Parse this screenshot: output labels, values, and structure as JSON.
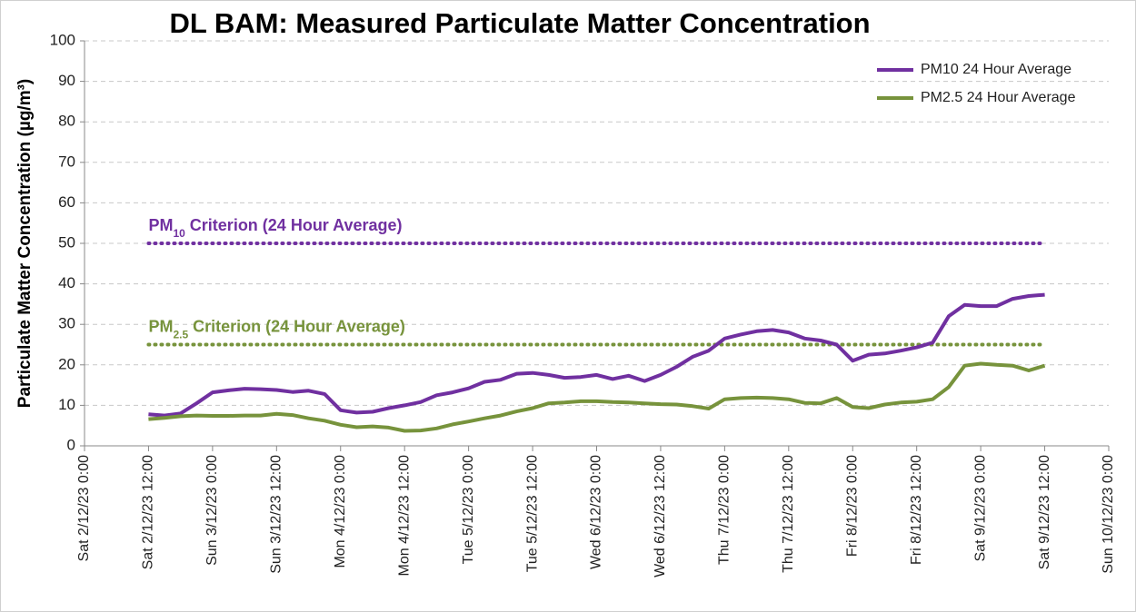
{
  "chart_data": {
    "type": "line",
    "title": "DL BAM: Measured Particulate Matter Concentration",
    "y_label": "Particulate Matter Concentration (µg/m³)",
    "ylim": [
      0,
      100
    ],
    "yticks": [
      0,
      10,
      20,
      30,
      40,
      50,
      60,
      70,
      80,
      90,
      100
    ],
    "xlim": [
      "2023-12-02T00:00",
      "2023-12-10T00:00"
    ],
    "xticks": [
      {
        "value": "2023-12-02T00:00",
        "label": "Sat 2/12/23 0:00"
      },
      {
        "value": "2023-12-02T12:00",
        "label": "Sat 2/12/23 12:00"
      },
      {
        "value": "2023-12-03T00:00",
        "label": "Sun 3/12/23 0:00"
      },
      {
        "value": "2023-12-03T12:00",
        "label": "Sun 3/12/23 12:00"
      },
      {
        "value": "2023-12-04T00:00",
        "label": "Mon 4/12/23 0:00"
      },
      {
        "value": "2023-12-04T12:00",
        "label": "Mon 4/12/23 12:00"
      },
      {
        "value": "2023-12-05T00:00",
        "label": "Tue 5/12/23 0:00"
      },
      {
        "value": "2023-12-05T12:00",
        "label": "Tue 5/12/23 12:00"
      },
      {
        "value": "2023-12-06T00:00",
        "label": "Wed 6/12/23 0:00"
      },
      {
        "value": "2023-12-06T12:00",
        "label": "Wed 6/12/23 12:00"
      },
      {
        "value": "2023-12-07T00:00",
        "label": "Thu 7/12/23 0:00"
      },
      {
        "value": "2023-12-07T12:00",
        "label": "Thu 7/12/23 12:00"
      },
      {
        "value": "2023-12-08T00:00",
        "label": "Fri 8/12/23 0:00"
      },
      {
        "value": "2023-12-08T12:00",
        "label": "Fri 8/12/23 12:00"
      },
      {
        "value": "2023-12-09T00:00",
        "label": "Sat 9/12/23 0:00"
      },
      {
        "value": "2023-12-09T12:00",
        "label": "Sat 9/12/23 12:00"
      },
      {
        "value": "2023-12-10T00:00",
        "label": "Sun 10/12/23 0:00"
      }
    ],
    "grid": true,
    "legend": "top-right",
    "x": [
      "2023-12-02T12:00",
      "2023-12-02T15:00",
      "2023-12-02T18:00",
      "2023-12-02T21:00",
      "2023-12-03T00:00",
      "2023-12-03T03:00",
      "2023-12-03T06:00",
      "2023-12-03T09:00",
      "2023-12-03T12:00",
      "2023-12-03T15:00",
      "2023-12-03T18:00",
      "2023-12-03T21:00",
      "2023-12-04T00:00",
      "2023-12-04T03:00",
      "2023-12-04T06:00",
      "2023-12-04T09:00",
      "2023-12-04T12:00",
      "2023-12-04T15:00",
      "2023-12-04T18:00",
      "2023-12-04T21:00",
      "2023-12-05T00:00",
      "2023-12-05T03:00",
      "2023-12-05T06:00",
      "2023-12-05T09:00",
      "2023-12-05T12:00",
      "2023-12-05T15:00",
      "2023-12-05T18:00",
      "2023-12-05T21:00",
      "2023-12-06T00:00",
      "2023-12-06T03:00",
      "2023-12-06T06:00",
      "2023-12-06T09:00",
      "2023-12-06T12:00",
      "2023-12-06T15:00",
      "2023-12-06T18:00",
      "2023-12-06T21:00",
      "2023-12-07T00:00",
      "2023-12-07T03:00",
      "2023-12-07T06:00",
      "2023-12-07T09:00",
      "2023-12-07T12:00",
      "2023-12-07T15:00",
      "2023-12-07T18:00",
      "2023-12-07T21:00",
      "2023-12-08T00:00",
      "2023-12-08T03:00",
      "2023-12-08T06:00",
      "2023-12-08T09:00",
      "2023-12-08T12:00",
      "2023-12-08T15:00",
      "2023-12-08T18:00",
      "2023-12-08T21:00",
      "2023-12-09T00:00",
      "2023-12-09T03:00",
      "2023-12-09T06:00",
      "2023-12-09T09:00",
      "2023-12-09T12:00"
    ],
    "series": [
      {
        "name": "PM10 24 Hour Average",
        "color": "#7030a0",
        "values": [
          7.8,
          7.5,
          8,
          10.5,
          13.2,
          13.7,
          14.1,
          14,
          13.8,
          13.3,
          13.6,
          12.8,
          8.8,
          8.2,
          8.4,
          9.3,
          10,
          10.8,
          12.5,
          13.2,
          14.2,
          15.8,
          16.3,
          17.8,
          18,
          17.5,
          16.8,
          17,
          17.5,
          16.5,
          17.3,
          16,
          17.5,
          19.5,
          22,
          23.5,
          26.5,
          27.5,
          28.3,
          28.6,
          28,
          26.5,
          26,
          25,
          21,
          22.5,
          22.8,
          23.5,
          24.3,
          25.5,
          32,
          34.8,
          34.5,
          34.5,
          36.3,
          37,
          37.3
        ]
      },
      {
        "name": "PM2.5 24 Hour Average",
        "color": "#77933c",
        "values": [
          6.6,
          6.9,
          7.3,
          7.5,
          7.4,
          7.4,
          7.5,
          7.5,
          7.9,
          7.6,
          6.8,
          6.2,
          5.2,
          4.6,
          4.8,
          4.5,
          3.7,
          3.8,
          4.3,
          5.3,
          6,
          6.8,
          7.5,
          8.5,
          9.3,
          10.5,
          10.7,
          11,
          11,
          10.8,
          10.7,
          10.5,
          10.3,
          10.2,
          9.8,
          9.2,
          11.5,
          11.8,
          11.9,
          11.8,
          11.5,
          10.6,
          10.5,
          11.8,
          9.6,
          9.3,
          10.2,
          10.7,
          10.9,
          11.5,
          14.5,
          19.8,
          20.3,
          20,
          19.8,
          18.6,
          19.8
        ]
      }
    ],
    "criteria": [
      {
        "label_parts": [
          "PM",
          "10",
          " Criterion (24 Hour Average)"
        ],
        "value": 50,
        "color": "#7030a0",
        "from": "2023-12-02T12:00",
        "to": "2023-12-09T12:00"
      },
      {
        "label_parts": [
          "PM",
          "2.5",
          " Criterion (24 Hour Average)"
        ],
        "value": 25,
        "color": "#77933c",
        "from": "2023-12-02T12:00",
        "to": "2023-12-09T12:00"
      }
    ]
  }
}
